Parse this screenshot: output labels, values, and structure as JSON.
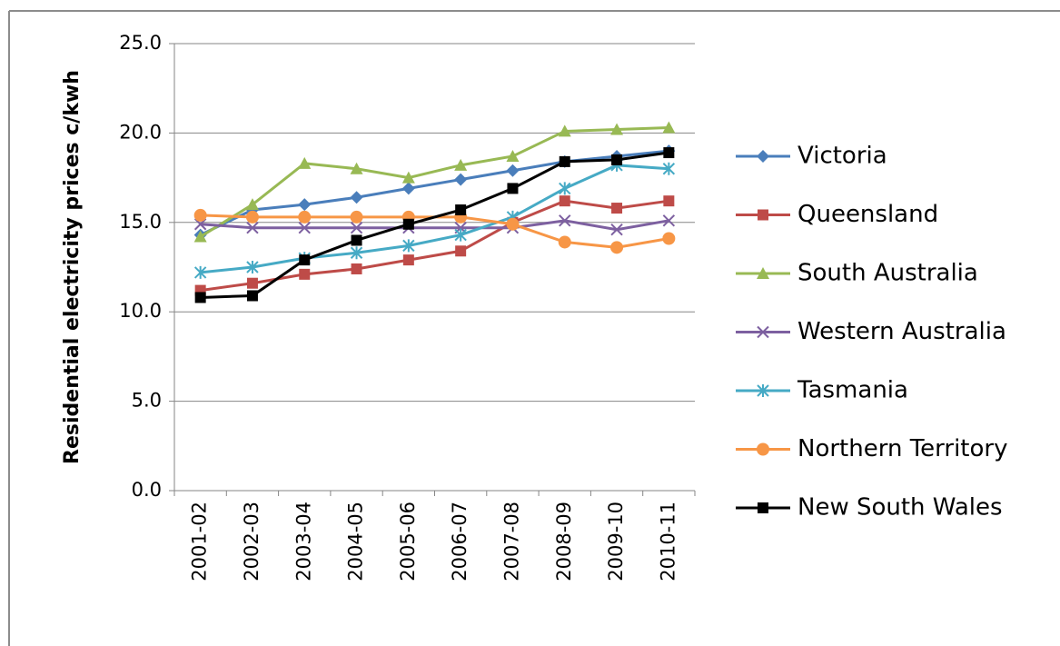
{
  "chart_data": {
    "type": "line",
    "y_label": "Residential electricity prices c/kwh",
    "categories": [
      "2001-02",
      "2002-03",
      "2003-04",
      "2004-05",
      "2005-06",
      "2006-07",
      "2007-08",
      "2008-09",
      "2009-10",
      "2010-11"
    ],
    "ylim": [
      0,
      25
    ],
    "yticks": [
      {
        "value": 0,
        "label": "0.0"
      },
      {
        "value": 5,
        "label": "5.0"
      },
      {
        "value": 10,
        "label": "10.0"
      },
      {
        "value": 15,
        "label": "15.0"
      },
      {
        "value": 20,
        "label": "20.0"
      },
      {
        "value": 25,
        "label": "25.0"
      }
    ],
    "grid": true,
    "legend": "right",
    "series": [
      {
        "name": "Victoria",
        "color": "#4a7ebb",
        "marker": "diamond",
        "values": [
          14.3,
          15.7,
          16.0,
          16.4,
          16.9,
          17.4,
          17.9,
          18.4,
          18.7,
          19.0
        ]
      },
      {
        "name": "Queensland",
        "color": "#be4b48",
        "marker": "square",
        "values": [
          11.2,
          11.6,
          12.1,
          12.4,
          12.9,
          13.4,
          15.0,
          16.2,
          15.8,
          16.2
        ]
      },
      {
        "name": "South Australia",
        "color": "#98b954",
        "marker": "triangle",
        "values": [
          14.2,
          16.0,
          18.3,
          18.0,
          17.5,
          18.2,
          18.7,
          20.1,
          20.2,
          20.3
        ]
      },
      {
        "name": "Western Australia",
        "color": "#7d60a0",
        "marker": "x",
        "values": [
          14.9,
          14.7,
          14.7,
          14.7,
          14.7,
          14.7,
          14.7,
          15.1,
          14.6,
          15.1
        ]
      },
      {
        "name": "Tasmania",
        "color": "#46aac5",
        "marker": "star",
        "values": [
          12.2,
          12.5,
          13.0,
          13.3,
          13.7,
          14.3,
          15.3,
          16.9,
          18.2,
          18.0
        ]
      },
      {
        "name": "Northern Territory",
        "color": "#f79646",
        "marker": "circle",
        "values": [
          15.4,
          15.3,
          15.3,
          15.3,
          15.3,
          15.3,
          14.9,
          13.9,
          13.6,
          14.1
        ]
      },
      {
        "name": "New South Wales",
        "color": "#000000",
        "marker": "square",
        "values": [
          10.8,
          10.9,
          12.9,
          14.0,
          14.9,
          15.7,
          16.9,
          18.4,
          18.5,
          18.9
        ]
      }
    ]
  }
}
